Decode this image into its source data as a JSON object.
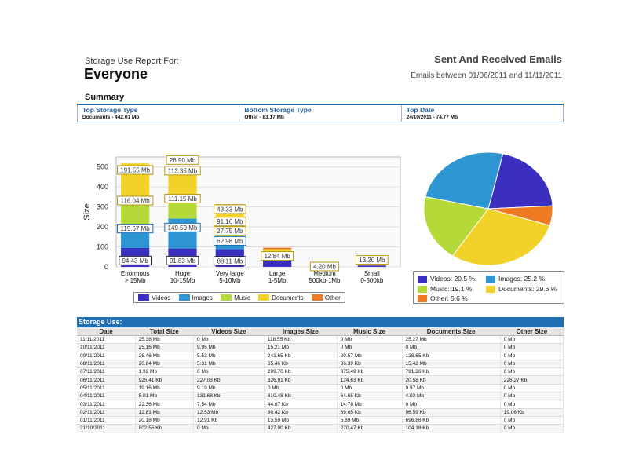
{
  "header": {
    "report_label": "Storage Use Report For:",
    "report_for": "Everyone",
    "right_title": "Sent And Received Emails",
    "date_range": "Emails between 01/06/2011 and 11/11/2011"
  },
  "summary": {
    "title": "Summary",
    "columns": [
      {
        "heading": "Top Storage Type",
        "value": "Documents - 442.01 Mb"
      },
      {
        "heading": "Bottom Storage Type",
        "value": "Other - 83.17 Mb"
      },
      {
        "heading": "Top Date",
        "value": "24/10/2011 - 74.77 Mb"
      }
    ]
  },
  "colors": {
    "Videos": "#3b2fbf",
    "Images": "#2e95d3",
    "Music": "#b6d93a",
    "Documents": "#f2d229",
    "Other": "#f07a22"
  },
  "chart_data": [
    {
      "type": "bar",
      "stacked": true,
      "ylabel": "Size",
      "ylim": [
        0,
        550
      ],
      "yticks": [
        0,
        100,
        200,
        300,
        400,
        500
      ],
      "categories": [
        [
          "Enormous",
          "> 15Mb"
        ],
        [
          "Huge",
          "10-15Mb"
        ],
        [
          "Very large",
          "5-10Mb"
        ],
        [
          "Large",
          "1-5Mb"
        ],
        [
          "Medium",
          "500kb-1Mb"
        ],
        [
          "Small",
          "0-500kb"
        ]
      ],
      "series": [
        {
          "name": "Videos",
          "values": [
            94.43,
            91.83,
            88.11,
            0,
            0,
            0
          ]
        },
        {
          "name": "Images",
          "values": [
            115.67,
            149.59,
            62.98,
            0,
            0,
            0
          ]
        },
        {
          "name": "Music",
          "values": [
            116.04,
            111.15,
            27.75,
            0,
            0,
            0
          ]
        },
        {
          "name": "Documents",
          "values": [
            191.55,
            113.35,
            91.16,
            0,
            0,
            0
          ]
        },
        {
          "name": "Other",
          "values": [
            0,
            26.9,
            43.33,
            0,
            0,
            0
          ]
        }
      ],
      "extra_bars": [
        {
          "category_index": 3,
          "segments": [
            {
              "series": "Videos",
              "value": 75
            },
            {
              "series": "Documents",
              "value": 12.84
            },
            {
              "series": "Other",
              "value": 8
            }
          ]
        },
        {
          "category_index": 4,
          "segments": [
            {
              "series": "Documents",
              "value": 4.2
            }
          ]
        },
        {
          "category_index": 5,
          "segments": [
            {
              "series": "Videos",
              "value": 7
            },
            {
              "series": "Documents",
              "value": 13.2
            }
          ]
        }
      ],
      "data_labels": [
        {
          "cat": 0,
          "text": "94.43 Mb",
          "value": 30,
          "series": "Videos"
        },
        {
          "cat": 0,
          "text": "115.67 Mb",
          "value": 190,
          "series": "Images"
        },
        {
          "cat": 0,
          "text": "116.04 Mb",
          "value": 330,
          "series": "Music"
        },
        {
          "cat": 0,
          "text": "191.55 Mb",
          "value": 483,
          "series": "Documents"
        },
        {
          "cat": 1,
          "text": "91.83 Mb",
          "value": 30,
          "series": "Videos"
        },
        {
          "cat": 1,
          "text": "149.59 Mb",
          "value": 195,
          "series": "Images"
        },
        {
          "cat": 1,
          "text": "111.15 Mb",
          "value": 340,
          "series": "Music"
        },
        {
          "cat": 1,
          "text": "113.35 Mb",
          "value": 480,
          "series": "Documents"
        },
        {
          "cat": 1,
          "text": "26.90 Mb",
          "value": 533,
          "series": "Documents"
        },
        {
          "cat": 2,
          "text": "88.11 Mb",
          "value": 28,
          "series": "Videos"
        },
        {
          "cat": 2,
          "text": "62.98 Mb",
          "value": 128,
          "series": "Images"
        },
        {
          "cat": 2,
          "text": "27.75 Mb",
          "value": 178,
          "series": "Music"
        },
        {
          "cat": 2,
          "text": "91.16 Mb",
          "value": 225,
          "series": "Documents"
        },
        {
          "cat": 2,
          "text": "43.33 Mb",
          "value": 287,
          "series": "Documents"
        },
        {
          "cat": 3,
          "text": "12.84 Mb",
          "value": 53,
          "series": "Documents"
        },
        {
          "cat": 4,
          "text": "4.20 Mb",
          "value": 0,
          "series": "Documents"
        },
        {
          "cat": 5,
          "text": "13.20 Mb",
          "value": 33,
          "series": "Documents"
        }
      ],
      "legend": [
        "Videos",
        "Images",
        "Music",
        "Documents",
        "Other"
      ],
      "legend_placement": "bottom",
      "grid": true
    },
    {
      "type": "pie",
      "slices": [
        {
          "name": "Videos",
          "value": 20.5,
          "label": "Videos: 20.5 %"
        },
        {
          "name": "Other",
          "value": 5.6,
          "label": "Other: 5.6 %"
        },
        {
          "name": "Documents",
          "value": 29.6,
          "label": "Documents: 29.6 %"
        },
        {
          "name": "Music",
          "value": 19.1,
          "label": "Music: 19.1 %"
        },
        {
          "name": "Images",
          "value": 25.2,
          "label": "Images: 25.2 %"
        }
      ],
      "legend_order": [
        "Videos",
        "Images",
        "Music",
        "Documents",
        "Other"
      ],
      "legend_placement": "bottom"
    }
  ],
  "storage_use": {
    "title": "Storage Use:",
    "headers": [
      "Date",
      "Total Size",
      "Videos Size",
      "Images Size",
      "Music Size",
      "Documents Size",
      "Other Size"
    ],
    "rows": [
      [
        "11/11/2011",
        "25.38 Mb",
        "0 Mb",
        "118.55 Kb",
        "0 Mb",
        "25.27 Mb",
        "0 Mb"
      ],
      [
        "10/11/2011",
        "25.16 Mb",
        "9.95 Mb",
        "15.21 Mb",
        "0 Mb",
        "0 Mb",
        "0 Mb"
      ],
      [
        "09/11/2011",
        "26.46 Mb",
        "5.53 Mb",
        "241.65 Kb",
        "20.57 Mb",
        "128.65 Kb",
        "0 Mb"
      ],
      [
        "08/11/2011",
        "20.84 Mb",
        "5.31 Mb",
        "65.46 Kb",
        "36.39 Kb",
        "15.42 Mb",
        "0 Mb"
      ],
      [
        "07/11/2011",
        "1.92 Mb",
        "0 Mb",
        "299.70 Kb",
        "875.49 Kb",
        "791.26 Kb",
        "0 Mb"
      ],
      [
        "06/11/2011",
        "925.41 Kb",
        "227.03 Kb",
        "326.91 Kb",
        "124.63 Kb",
        "20.58 Kb",
        "226.27 Kb"
      ],
      [
        "05/11/2011",
        "19.16 Mb",
        "9.19 Mb",
        "0 Mb",
        "0 Mb",
        "9.97 Mb",
        "0 Mb"
      ],
      [
        "04/11/2011",
        "5.01 Mb",
        "131.68 Kb",
        "810.48 Kb",
        "64.65 Kb",
        "4.02 Mb",
        "0 Mb"
      ],
      [
        "03/11/2011",
        "22.36 Mb",
        "7.54 Mb",
        "44.67 Kb",
        "14.78 Mb",
        "0 Mb",
        "0 Mb"
      ],
      [
        "02/11/2011",
        "12.81 Mb",
        "12.53 Mb",
        "80.42 Kb",
        "89.65 Kb",
        "96.59 Kb",
        "19.06 Kb"
      ],
      [
        "01/11/2011",
        "20.18 Mb",
        "12.91 Kb",
        "13.59 Mb",
        "5.89 Mb",
        "696.86 Kb",
        "0 Mb"
      ],
      [
        "31/10/2011",
        "802.55 Kb",
        "0 Mb",
        "427.90 Kb",
        "270.47 Kb",
        "104.18 Kb",
        "0 Mb"
      ]
    ]
  }
}
